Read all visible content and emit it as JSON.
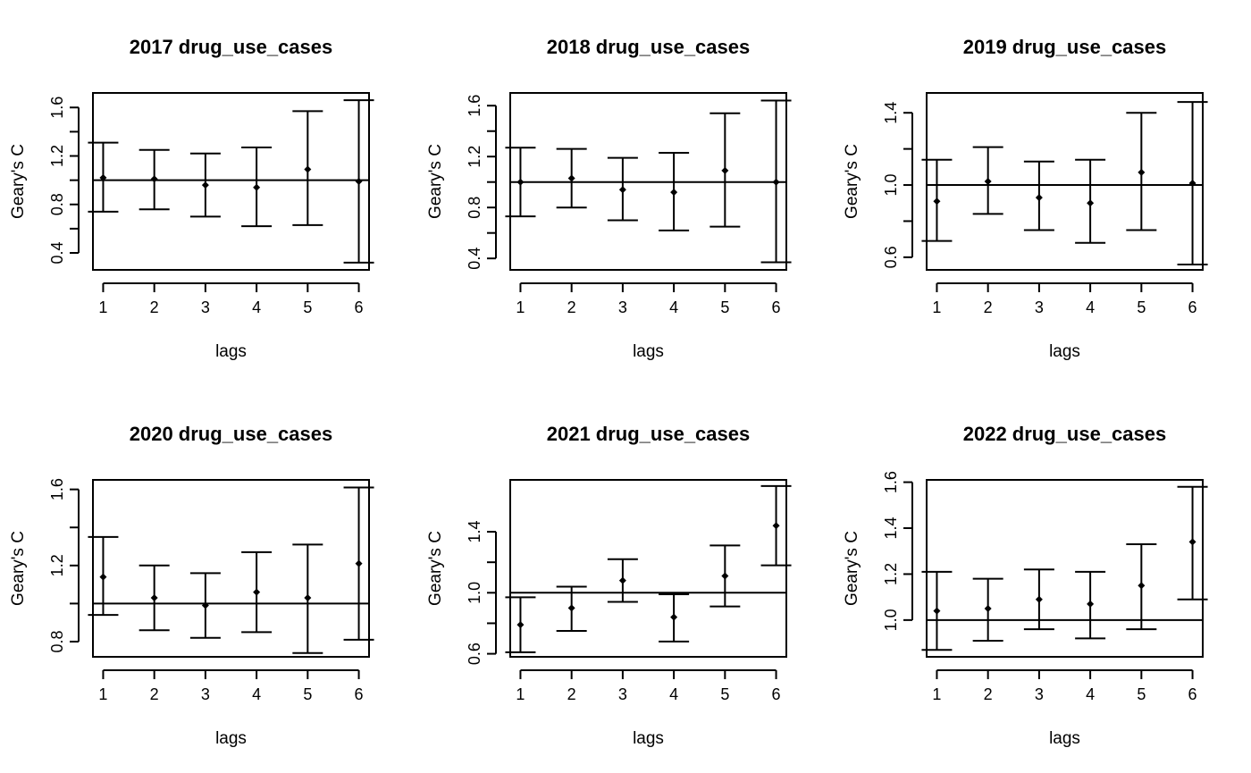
{
  "chart_data": [
    {
      "type": "errorbar",
      "title": "2017 drug_use_cases",
      "xlabel": "lags",
      "ylabel": "Geary's  C",
      "x": [
        1,
        2,
        3,
        4,
        5,
        6
      ],
      "y": [
        1.02,
        1.01,
        0.96,
        0.94,
        1.09,
        0.99
      ],
      "lower": [
        0.74,
        0.76,
        0.7,
        0.62,
        0.63,
        0.32
      ],
      "upper": [
        1.31,
        1.25,
        1.22,
        1.27,
        1.57,
        1.66
      ],
      "reference_line": 1.0,
      "xlim": [
        0.8,
        6.2
      ],
      "ylim": [
        0.26,
        1.72
      ],
      "xticks": [
        1,
        2,
        3,
        4,
        5,
        6
      ],
      "yticks": [
        0.4,
        0.8,
        1.2,
        1.6
      ],
      "ytick_labels": [
        "0.4",
        "0.8",
        "1.2",
        "1.6"
      ],
      "minor_yticks": [
        0.6,
        1.0,
        1.4
      ]
    },
    {
      "type": "errorbar",
      "title": "2018 drug_use_cases",
      "xlabel": "lags",
      "ylabel": "Geary's  C",
      "x": [
        1,
        2,
        3,
        4,
        5,
        6
      ],
      "y": [
        1.0,
        1.03,
        0.94,
        0.92,
        1.09,
        1.0
      ],
      "lower": [
        0.73,
        0.8,
        0.7,
        0.62,
        0.65,
        0.37
      ],
      "upper": [
        1.27,
        1.26,
        1.19,
        1.23,
        1.54,
        1.64
      ],
      "reference_line": 1.0,
      "xlim": [
        0.8,
        6.2
      ],
      "ylim": [
        0.31,
        1.7
      ],
      "xticks": [
        1,
        2,
        3,
        4,
        5,
        6
      ],
      "yticks": [
        0.4,
        0.8,
        1.2,
        1.6
      ],
      "ytick_labels": [
        "0.4",
        "0.8",
        "1.2",
        "1.6"
      ],
      "minor_yticks": [
        0.6,
        1.0,
        1.4
      ]
    },
    {
      "type": "errorbar",
      "title": "2019 drug_use_cases",
      "xlabel": "lags",
      "ylabel": "Geary's  C",
      "x": [
        1,
        2,
        3,
        4,
        5,
        6
      ],
      "y": [
        0.91,
        1.02,
        0.93,
        0.9,
        1.07,
        1.01
      ],
      "lower": [
        0.69,
        0.84,
        0.75,
        0.68,
        0.75,
        0.56
      ],
      "upper": [
        1.14,
        1.21,
        1.13,
        1.14,
        1.4,
        1.46
      ],
      "reference_line": 1.0,
      "xlim": [
        0.8,
        6.2
      ],
      "ylim": [
        0.53,
        1.51
      ],
      "xticks": [
        1,
        2,
        3,
        4,
        5,
        6
      ],
      "yticks": [
        0.6,
        1.0,
        1.4
      ],
      "ytick_labels": [
        "0.6",
        "1.0",
        "1.4"
      ],
      "minor_yticks": [
        0.8,
        1.2
      ]
    },
    {
      "type": "errorbar",
      "title": "2020 drug_use_cases",
      "xlabel": "lags",
      "ylabel": "Geary's  C",
      "x": [
        1,
        2,
        3,
        4,
        5,
        6
      ],
      "y": [
        1.14,
        1.03,
        0.99,
        1.06,
        1.03,
        1.21
      ],
      "lower": [
        0.94,
        0.86,
        0.82,
        0.85,
        0.74,
        0.81
      ],
      "upper": [
        1.35,
        1.2,
        1.16,
        1.27,
        1.31,
        1.61
      ],
      "reference_line": 1.0,
      "xlim": [
        0.8,
        6.2
      ],
      "ylim": [
        0.72,
        1.65
      ],
      "xticks": [
        1,
        2,
        3,
        4,
        5,
        6
      ],
      "yticks": [
        0.8,
        1.2,
        1.6
      ],
      "ytick_labels": [
        "0.8",
        "1.2",
        "1.6"
      ],
      "minor_yticks": [
        1.0,
        1.4
      ]
    },
    {
      "type": "errorbar",
      "title": "2021 drug_use_cases",
      "xlabel": "lags",
      "ylabel": "Geary's  C",
      "x": [
        1,
        2,
        3,
        4,
        5,
        6
      ],
      "y": [
        0.79,
        0.9,
        1.08,
        0.84,
        1.11,
        1.44
      ],
      "lower": [
        0.61,
        0.75,
        0.94,
        0.68,
        0.91,
        1.18
      ],
      "upper": [
        0.97,
        1.04,
        1.22,
        0.99,
        1.31,
        1.7
      ],
      "reference_line": 1.0,
      "xlim": [
        0.8,
        6.2
      ],
      "ylim": [
        0.58,
        1.74
      ],
      "xticks": [
        1,
        2,
        3,
        4,
        5,
        6
      ],
      "yticks": [
        0.6,
        1.0,
        1.4
      ],
      "ytick_labels": [
        "0.6",
        "1.0",
        "1.4"
      ],
      "minor_yticks": [
        0.8,
        1.2
      ]
    },
    {
      "type": "errorbar",
      "title": "2022 drug_use_cases",
      "xlabel": "lags",
      "ylabel": "Geary's  C",
      "x": [
        1,
        2,
        3,
        4,
        5,
        6
      ],
      "y": [
        1.04,
        1.05,
        1.09,
        1.07,
        1.15,
        1.34
      ],
      "lower": [
        0.87,
        0.91,
        0.96,
        0.92,
        0.96,
        1.09
      ],
      "upper": [
        1.21,
        1.18,
        1.22,
        1.21,
        1.33,
        1.58
      ],
      "reference_line": 1.0,
      "xlim": [
        0.8,
        6.2
      ],
      "ylim": [
        0.84,
        1.61
      ],
      "xticks": [
        1,
        2,
        3,
        4,
        5,
        6
      ],
      "yticks": [
        1.0,
        1.2,
        1.4,
        1.6
      ],
      "ytick_labels": [
        "1.0",
        "1.2",
        "1.4",
        "1.6"
      ],
      "minor_yticks": []
    }
  ]
}
